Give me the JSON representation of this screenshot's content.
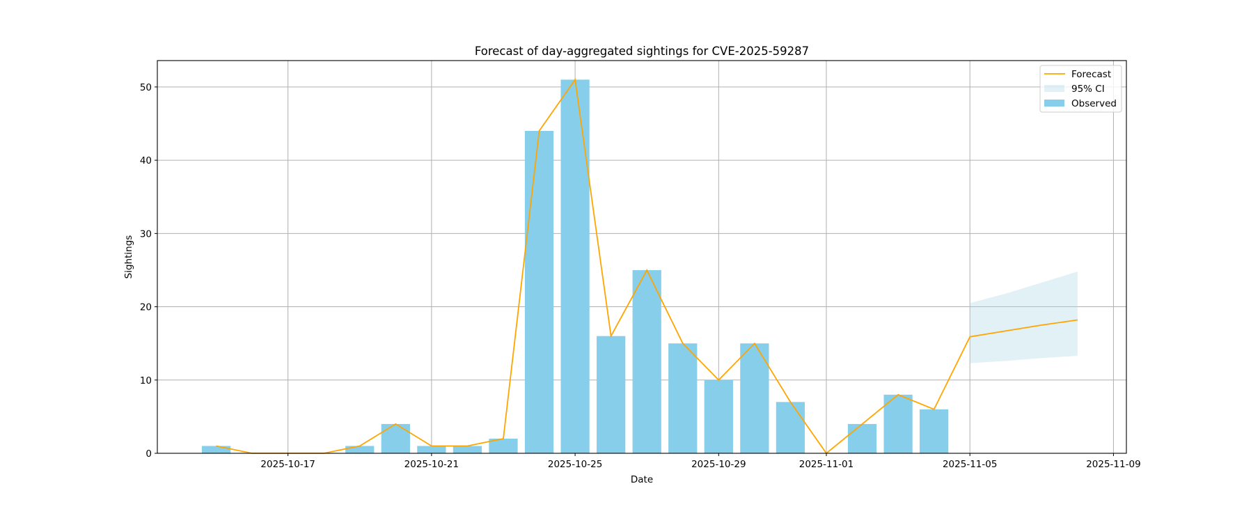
{
  "chart_data": {
    "type": "bar",
    "title": "Forecast of day-aggregated sightings for CVE-2025-59287",
    "xlabel": "Date",
    "ylabel": "Sightings",
    "ylim": [
      0,
      53.6
    ],
    "xlim": [
      "2025-10-13.36",
      "2025-11-09.36"
    ],
    "grid": true,
    "legend_position": "top-right",
    "yticks": [
      0,
      10,
      20,
      30,
      40,
      50
    ],
    "xticks": [
      "2025-10-17",
      "2025-10-21",
      "2025-10-25",
      "2025-10-29",
      "2025-11-01",
      "2025-11-05",
      "2025-11-09"
    ],
    "legend": [
      "Forecast",
      "95% CI",
      "Observed"
    ],
    "colors": {
      "observed": "#87ceeb",
      "forecast": "#ffa500",
      "ci": "#add8e6"
    },
    "observed": {
      "name": "Observed",
      "dates": [
        "2025-10-15",
        "2025-10-16",
        "2025-10-17",
        "2025-10-18",
        "2025-10-19",
        "2025-10-20",
        "2025-10-21",
        "2025-10-22",
        "2025-10-23",
        "2025-10-24",
        "2025-10-25",
        "2025-10-26",
        "2025-10-27",
        "2025-10-28",
        "2025-10-29",
        "2025-10-30",
        "2025-10-31",
        "2025-11-01",
        "2025-11-02",
        "2025-11-03",
        "2025-11-04"
      ],
      "values": [
        1,
        0,
        0,
        0,
        1,
        4,
        1,
        1,
        2,
        44,
        51,
        16,
        25,
        15,
        10,
        15,
        7,
        0,
        4,
        8,
        6
      ]
    },
    "forecast": {
      "name": "Forecast",
      "dates": [
        "2025-10-15",
        "2025-10-16",
        "2025-10-17",
        "2025-10-18",
        "2025-10-19",
        "2025-10-20",
        "2025-10-21",
        "2025-10-22",
        "2025-10-23",
        "2025-10-24",
        "2025-10-25",
        "2025-10-26",
        "2025-10-27",
        "2025-10-28",
        "2025-10-29",
        "2025-10-30",
        "2025-10-31",
        "2025-11-01",
        "2025-11-02",
        "2025-11-03",
        "2025-11-04",
        "2025-11-05",
        "2025-11-06",
        "2025-11-07",
        "2025-11-08"
      ],
      "values": [
        1,
        0,
        0,
        0,
        1,
        4,
        1,
        1,
        2,
        44,
        51,
        16,
        25,
        15,
        10,
        15,
        7,
        0,
        4,
        8,
        6,
        15.9,
        16.7,
        17.5,
        18.2
      ]
    },
    "ci": {
      "name": "95% CI",
      "dates": [
        "2025-11-05",
        "2025-11-06",
        "2025-11-07",
        "2025-11-08"
      ],
      "lower": [
        12.3,
        12.6,
        13.0,
        13.3
      ],
      "upper": [
        20.5,
        21.8,
        23.3,
        24.8
      ]
    }
  }
}
